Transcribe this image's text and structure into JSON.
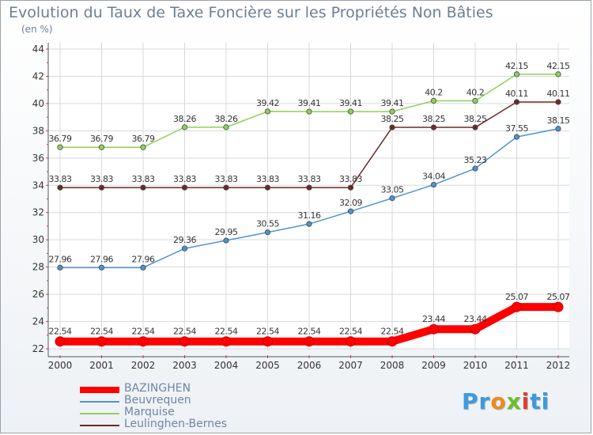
{
  "title": "Evolution du Taux de Taxe Foncière sur les Propriétés Non Bâties",
  "unit_label": "(en %)",
  "logo": {
    "letters": [
      "P",
      "r",
      "o",
      "x",
      "i",
      "t",
      "i"
    ],
    "colors": [
      "#3b9be0",
      "#3b9be0",
      "#f08a1c",
      "#6cbf2a",
      "#e23d2e",
      "#3b9be0",
      "#3b9be0"
    ]
  },
  "chart_data": {
    "type": "line",
    "x": [
      "2000",
      "2001",
      "2002",
      "2003",
      "2004",
      "2005",
      "2006",
      "2007",
      "2008",
      "2009",
      "2010",
      "2011",
      "2012"
    ],
    "ylim": [
      22,
      44
    ],
    "yticks": [
      22,
      24,
      26,
      28,
      30,
      32,
      34,
      36,
      38,
      40,
      42,
      44
    ],
    "grid": true,
    "legend_position": "bottom-left",
    "series": [
      {
        "name": "BAZINGHEN",
        "color": "#ff0000",
        "values": [
          22.54,
          22.54,
          22.54,
          22.54,
          22.54,
          22.54,
          22.54,
          22.54,
          22.54,
          23.44,
          23.44,
          25.07,
          25.07
        ],
        "labels": [
          "22.54",
          "22.54",
          "22.54",
          "22.54",
          "22.54",
          "22.54",
          "22.54",
          "22.54",
          "22.54",
          "23.44",
          "23.44",
          "25.07",
          "25.07"
        ]
      },
      {
        "name": "Beuvrequen",
        "color": "#4f93cf",
        "values": [
          27.96,
          27.96,
          27.96,
          29.36,
          29.95,
          30.55,
          31.16,
          32.09,
          33.05,
          34.04,
          35.23,
          37.55,
          38.15
        ],
        "labels": [
          "27.96",
          "27.96",
          "27.96",
          "29.36",
          "29.95",
          "30.55",
          "31.16",
          "32.09",
          "33.05",
          "34.04",
          "35.23",
          "37.55",
          "38.15"
        ]
      },
      {
        "name": "Marquise",
        "color": "#8fd15a",
        "values": [
          36.79,
          36.79,
          36.79,
          38.26,
          38.26,
          39.42,
          39.41,
          39.41,
          39.41,
          40.2,
          40.2,
          42.15,
          42.15
        ],
        "labels": [
          "36.79",
          "36.79",
          "36.79",
          "38.26",
          "38.26",
          "39.42",
          "39.41",
          "39.41",
          "39.41",
          "40.2",
          "40.2",
          "42.15",
          "42.15"
        ]
      },
      {
        "name": "Leulinghen-Bernes",
        "color": "#6b2a2a",
        "values": [
          33.83,
          33.83,
          33.83,
          33.83,
          33.83,
          33.83,
          33.83,
          33.83,
          38.25,
          38.25,
          38.25,
          40.11,
          40.11
        ],
        "labels": [
          "33.83",
          "33.83",
          "33.83",
          "33.83",
          "33.83",
          "33.83",
          "33.83",
          "33.83",
          "38.25",
          "38.25",
          "38.25",
          "40.11",
          "40.11"
        ]
      }
    ]
  }
}
